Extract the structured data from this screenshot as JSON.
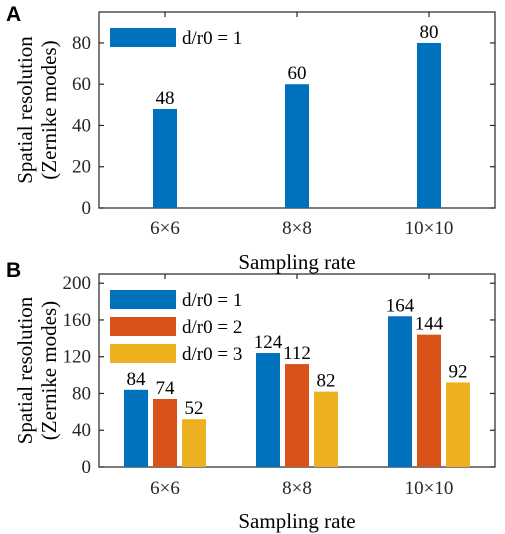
{
  "chart_data": [
    {
      "panel": "A",
      "type": "bar",
      "categories": [
        "6×6",
        "8×8",
        "10×10"
      ],
      "series": [
        {
          "name": "d/r0 = 1",
          "values": [
            48,
            60,
            80
          ],
          "color": "#0072BD"
        }
      ],
      "data_labels": [
        [
          "48",
          "60",
          "80"
        ]
      ],
      "xlabel": "Sampling rate",
      "ylabel": "Spatial resolution (Zernike modes)",
      "ylabel_lines": [
        "Spatial resolution",
        "(Zernike modes)"
      ],
      "ylim": [
        0,
        95
      ],
      "yticks": [
        0,
        20,
        40,
        60,
        80
      ],
      "ytick_labels": [
        "0",
        "20",
        "40",
        "60",
        "80"
      ],
      "grid": false,
      "legend_position": "top-left"
    },
    {
      "panel": "B",
      "type": "bar",
      "categories": [
        "6×6",
        "8×8",
        "10×10"
      ],
      "series": [
        {
          "name": "d/r0 = 1",
          "values": [
            84,
            124,
            164
          ],
          "color": "#0072BD"
        },
        {
          "name": "d/r0 = 2",
          "values": [
            74,
            112,
            144
          ],
          "color": "#D95319"
        },
        {
          "name": "d/r0 = 3",
          "values": [
            52,
            82,
            92
          ],
          "color": "#EDB120"
        }
      ],
      "data_labels": [
        [
          "84",
          "124",
          "164"
        ],
        [
          "74",
          "112",
          "144"
        ],
        [
          "52",
          "82",
          "92"
        ]
      ],
      "xlabel": "Sampling rate",
      "ylabel": "Spatial resolution (Zernike modes)",
      "ylabel_lines": [
        "Spatial resolution",
        "(Zernike modes)"
      ],
      "ylim": [
        0,
        210
      ],
      "yticks": [
        0,
        40,
        80,
        120,
        160,
        200
      ],
      "ytick_labels": [
        "0",
        "40",
        "80",
        "120",
        "160",
        "200"
      ],
      "grid": false,
      "legend_position": "top-left"
    }
  ]
}
